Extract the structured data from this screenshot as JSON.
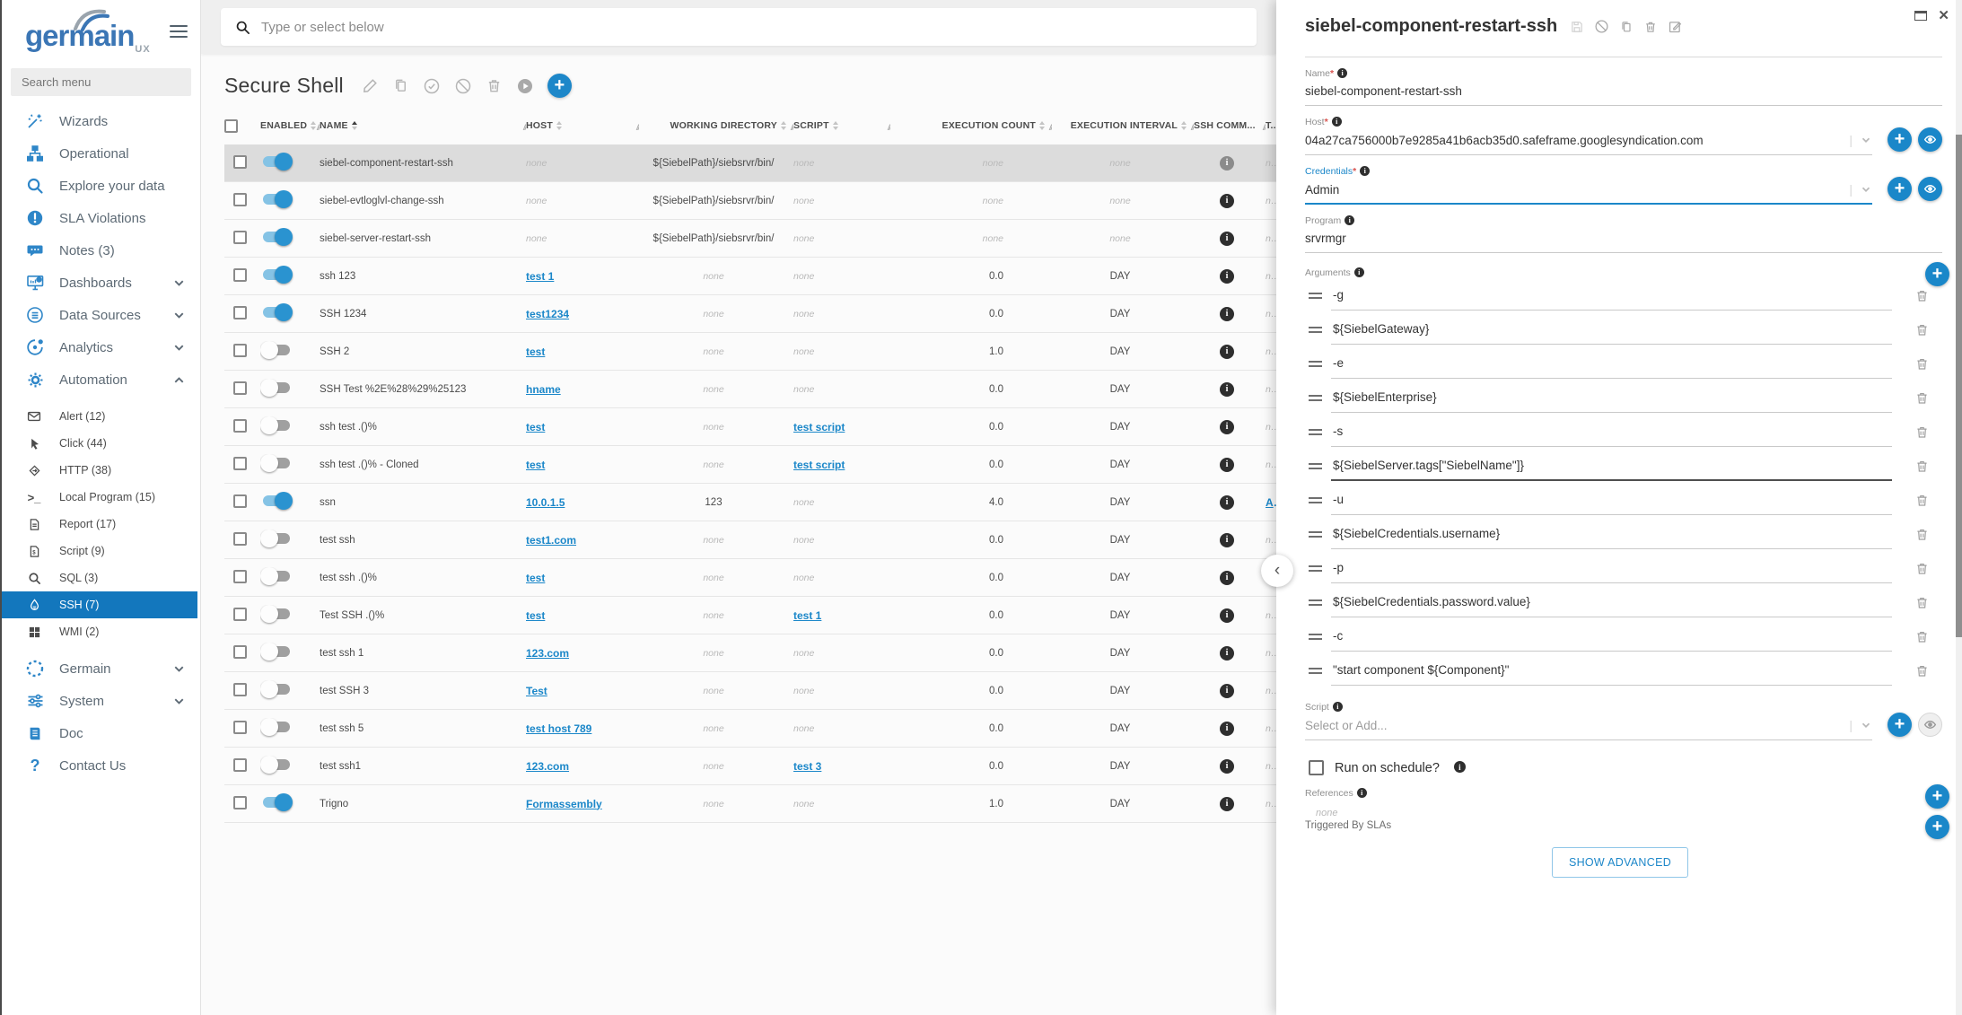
{
  "colors": {
    "accent": "#1d87c9",
    "sidebar_selected": "#1377bd",
    "logo_blue": "#3b76b5",
    "toggle_on_knob": "#2a93d0",
    "toggle_on_track": "#85c3e5",
    "selected_row_bg": "#dcdcdc",
    "link": "#1b87c9",
    "required_red": "#d9534f",
    "info_icon_bg": "#2e2e2e"
  },
  "sidebar": {
    "logo_text": "germain",
    "logo_sub": "UX",
    "search_placeholder": "Search menu",
    "items": [
      {
        "label": "Wizards",
        "icon": "wand"
      },
      {
        "label": "Operational",
        "icon": "sitemap"
      },
      {
        "label": "Explore your data",
        "icon": "search"
      },
      {
        "label": "SLA Violations",
        "icon": "alert-circle"
      },
      {
        "label": "Notes (3)",
        "icon": "chat"
      },
      {
        "label": "Dashboards",
        "icon": "monitor",
        "chevron": "down"
      },
      {
        "label": "Data Sources",
        "icon": "database",
        "chevron": "down"
      },
      {
        "label": "Analytics",
        "icon": "analytics",
        "chevron": "down"
      },
      {
        "label": "Automation",
        "icon": "gear",
        "chevron": "up",
        "children": [
          {
            "label": "Alert (12)",
            "icon": "mail"
          },
          {
            "label": "Click (44)",
            "icon": "cursor"
          },
          {
            "label": "HTTP (38)",
            "icon": "http"
          },
          {
            "label": "Local Program (15)",
            "icon": "terminal"
          },
          {
            "label": "Report (17)",
            "icon": "report"
          },
          {
            "label": "Script (9)",
            "icon": "script"
          },
          {
            "label": "SQL (3)",
            "icon": "sql"
          },
          {
            "label": "SSH (7)",
            "icon": "ssh",
            "selected": true
          },
          {
            "label": "WMI (2)",
            "icon": "wmi"
          }
        ]
      },
      {
        "label": "Germain",
        "icon": "germain",
        "chevron": "down"
      },
      {
        "label": "System",
        "icon": "system",
        "chevron": "down"
      },
      {
        "label": "Doc",
        "icon": "doc"
      },
      {
        "label": "Contact Us",
        "icon": "question"
      }
    ]
  },
  "main": {
    "search_placeholder": "Type or select below",
    "title": "Secure Shell",
    "toolbar_icons": [
      "edit-icon",
      "duplicate-icon",
      "enable-icon",
      "disable-icon",
      "delete-icon",
      "run-icon",
      "add-button"
    ],
    "table": {
      "columns": [
        {
          "label": "ENABLED",
          "sort": "both"
        },
        {
          "label": "NAME",
          "sort": "asc"
        },
        {
          "label": "HOST",
          "sort": "both"
        },
        {
          "label": "WORKING DIRECTORY",
          "sort": "both"
        },
        {
          "label": "SCRIPT",
          "sort": "both"
        },
        {
          "label": "EXECUTION COUNT",
          "sort": "both"
        },
        {
          "label": "EXECUTION INTERVAL",
          "sort": "both"
        },
        {
          "label": "SSH COMM...",
          "sort": null
        },
        {
          "label": "T...",
          "sort": null
        }
      ],
      "rows": [
        {
          "enabled": true,
          "selected": true,
          "name": "siebel-component-restart-ssh",
          "host": "none",
          "workdir": "${SiebelPath}/siebsrvr/bin/",
          "script": "none",
          "count": "none",
          "interval": "none",
          "tags": "none"
        },
        {
          "enabled": true,
          "name": "siebel-evtloglvl-change-ssh",
          "host": "none",
          "workdir": "${SiebelPath}/siebsrvr/bin/",
          "script": "none",
          "count": "none",
          "interval": "none",
          "tags": "none"
        },
        {
          "enabled": true,
          "name": "siebel-server-restart-ssh",
          "host": "none",
          "workdir": "${SiebelPath}/siebsrvr/bin/",
          "script": "none",
          "count": "none",
          "interval": "none",
          "tags": "none"
        },
        {
          "enabled": true,
          "name": "ssh 123",
          "host": "test 1",
          "host_link": true,
          "workdir": "none",
          "script": "none",
          "count": "0.0",
          "interval": "DAY",
          "tags": "none"
        },
        {
          "enabled": true,
          "name": "SSH 1234",
          "host": "test1234",
          "host_link": true,
          "workdir": "none",
          "script": "none",
          "count": "0.0",
          "interval": "DAY",
          "tags": "none"
        },
        {
          "enabled": false,
          "name": "SSH 2",
          "host": "test",
          "host_link": true,
          "workdir": "none",
          "script": "none",
          "count": "1.0",
          "interval": "DAY",
          "tags": "none"
        },
        {
          "enabled": false,
          "name": "SSH Test %2E%28%29%25123",
          "host": "hname",
          "host_link": true,
          "workdir": "none",
          "script": "none",
          "count": "0.0",
          "interval": "DAY",
          "tags": "none"
        },
        {
          "enabled": false,
          "name": "ssh test .()%",
          "host": "test",
          "host_link": true,
          "workdir": "none",
          "script": "test script",
          "script_link": true,
          "count": "0.0",
          "interval": "DAY",
          "tags": "none"
        },
        {
          "enabled": false,
          "name": "ssh test .()% - Cloned",
          "host": "test",
          "host_link": true,
          "workdir": "none",
          "script": "test script",
          "script_link": true,
          "count": "0.0",
          "interval": "DAY",
          "tags": "none"
        },
        {
          "enabled": true,
          "name": "ssn",
          "host": "10.0.1.5",
          "host_link": true,
          "workdir": "123",
          "script": "none",
          "count": "4.0",
          "interval": "DAY",
          "tags": "A",
          "tags_link": true
        },
        {
          "enabled": false,
          "name": "test ssh",
          "host": "test1.com",
          "host_link": true,
          "workdir": "none",
          "script": "none",
          "count": "0.0",
          "interval": "DAY",
          "tags": "none"
        },
        {
          "enabled": false,
          "name": "test ssh .()%",
          "host": "test",
          "host_link": true,
          "workdir": "none",
          "script": "none",
          "count": "0.0",
          "interval": "DAY",
          "tags": "none"
        },
        {
          "enabled": false,
          "name": "Test SSH .()%",
          "host": "test",
          "host_link": true,
          "workdir": "none",
          "script": "test 1",
          "script_link": true,
          "count": "0.0",
          "interval": "DAY",
          "tags": "none"
        },
        {
          "enabled": false,
          "name": "test ssh 1",
          "host": "123.com",
          "host_link": true,
          "workdir": "none",
          "script": "none",
          "count": "0.0",
          "interval": "DAY",
          "tags": "none"
        },
        {
          "enabled": false,
          "name": "test SSH 3",
          "host": "Test",
          "host_link": true,
          "workdir": "none",
          "script": "none",
          "count": "0.0",
          "interval": "DAY",
          "tags": "none"
        },
        {
          "enabled": false,
          "name": "test ssh 5",
          "host": "test host 789",
          "host_link": true,
          "workdir": "none",
          "script": "none",
          "count": "0.0",
          "interval": "DAY",
          "tags": "none"
        },
        {
          "enabled": false,
          "name": "test ssh1",
          "host": "123.com",
          "host_link": true,
          "workdir": "none",
          "script": "test 3",
          "script_link": true,
          "count": "0.0",
          "interval": "DAY",
          "tags": "none"
        },
        {
          "enabled": true,
          "name": "Trigno",
          "host": "Formassembly",
          "host_link": true,
          "workdir": "none",
          "script": "none",
          "count": "1.0",
          "interval": "DAY",
          "tags": "none"
        }
      ]
    }
  },
  "panel": {
    "title": "siebel-component-restart-ssh",
    "header_icons": [
      "save-icon",
      "disable-icon",
      "duplicate-icon",
      "delete-icon",
      "edit-icon"
    ],
    "window_icons": [
      "maximize-icon",
      "close-icon"
    ],
    "close_glyph": "✕",
    "collapse_glyph": "‹",
    "fields": {
      "name": {
        "label": "Name",
        "required_mark": "*",
        "value": "siebel-component-restart-ssh"
      },
      "host": {
        "label": "Host",
        "required_mark": "*",
        "value": "04a27ca756000b7e9285a41b6acb35d0.safeframe.googlesyndication.com"
      },
      "credentials": {
        "label": "Credentials",
        "required_mark": "*",
        "value": "Admin"
      },
      "program": {
        "label": "Program",
        "value": "srvrmgr"
      },
      "arguments_label": "Arguments",
      "script": {
        "label": "Script",
        "placeholder": "Select or Add..."
      }
    },
    "arguments": [
      "-g",
      "${SiebelGateway}",
      "-e",
      "${SiebelEnterprise}",
      "-s",
      "${SiebelServer.tags[\"SiebelName\"]}",
      "-u",
      "${SiebelCredentials.username}",
      "-p",
      "${SiebelCredentials.password.value}",
      "-c",
      "\"start component ${Component}\""
    ],
    "focused_argument_index": 5,
    "schedule_label": "Run on schedule?",
    "references": {
      "label": "References",
      "value": "none"
    },
    "triggered_by_label": "Triggered By SLAs",
    "show_advanced_label": "SHOW ADVANCED"
  }
}
